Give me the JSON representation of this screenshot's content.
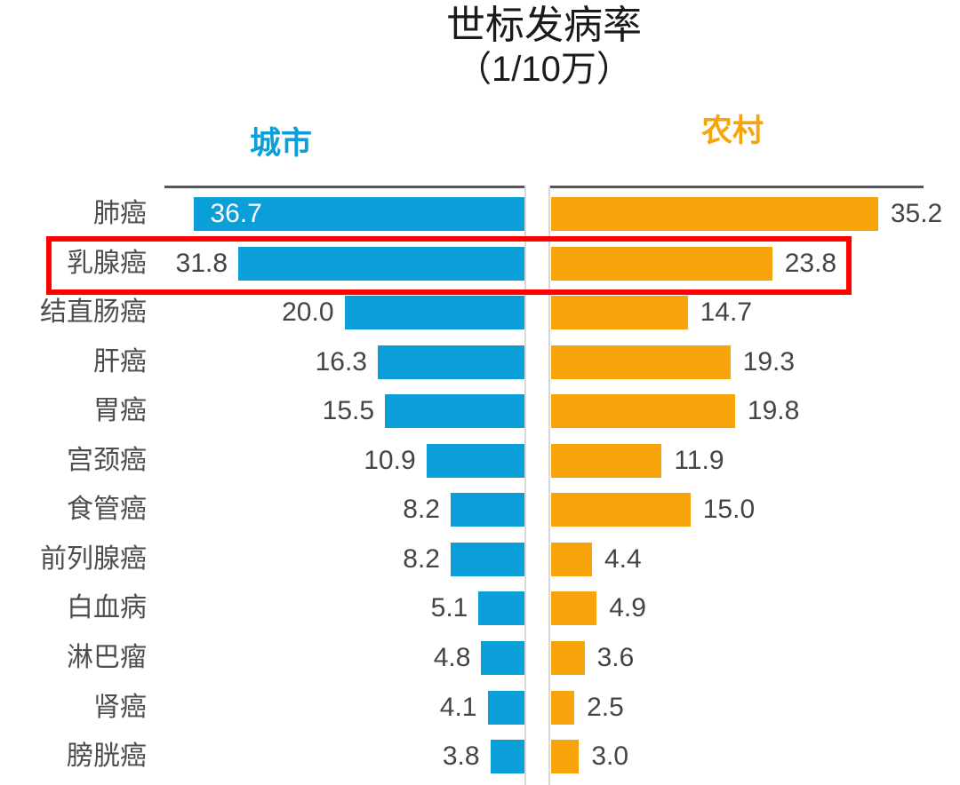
{
  "chart_data": {
    "type": "bar",
    "orientation": "horizontal-tornado",
    "title": "世标发病率",
    "subtitle": "（1/10万）",
    "unit_label": "1/10万",
    "xlim": [
      0,
      40
    ],
    "grid": false,
    "legend_position": "top-above-each-panel",
    "categories": [
      "肺癌",
      "乳腺癌",
      "结直肠癌",
      "肝癌",
      "胃癌",
      "宫颈癌",
      "食管癌",
      "前列腺癌",
      "白血病",
      "淋巴瘤",
      "肾癌",
      "膀胱癌"
    ],
    "series": [
      {
        "name": "城市",
        "color": "#0a9fd8",
        "side": "left",
        "values": [
          36.7,
          31.8,
          20.0,
          16.3,
          15.5,
          10.9,
          8.2,
          8.2,
          5.1,
          4.8,
          4.1,
          3.8
        ]
      },
      {
        "name": "农村",
        "color": "#f7a30a",
        "side": "right",
        "values": [
          35.2,
          23.8,
          14.7,
          19.3,
          19.8,
          11.9,
          15.0,
          4.4,
          4.9,
          3.6,
          2.5,
          3.0
        ]
      }
    ],
    "highlight": {
      "category": "乳腺癌",
      "row_index": 1,
      "box_color": "#fe0000"
    },
    "layout_hints": {
      "city_value_inside_bar_row": 0,
      "value_decimals": 1,
      "axis_rule_color": "#55565a",
      "baseline_color": "#d9d9d9",
      "label_color": "#4d4d4d"
    }
  }
}
